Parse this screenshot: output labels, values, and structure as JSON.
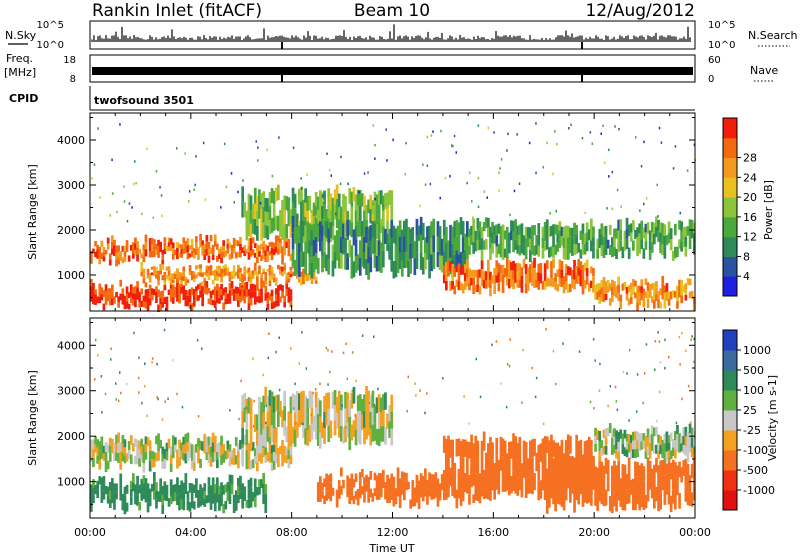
{
  "header": {
    "station": "Rankin Inlet (fitACF)",
    "beam": "Beam 10",
    "date": "12/Aug/2012"
  },
  "panels": {
    "nsky_label": "N.Sky",
    "nsky_ticks": [
      "10^5",
      "10^0"
    ],
    "nsearch_label": "N.Search",
    "nsearch_ticks": [
      "10^5",
      "10^0"
    ],
    "freq_label_1": "Freq.",
    "freq_label_2": "[MHz]",
    "freq_ticks": [
      "18",
      "8"
    ],
    "nave_label": "Nave",
    "nave_ticks": [
      "60",
      "0"
    ],
    "cpid_label": "CPID",
    "cpid_value": "twofsound 3501"
  },
  "chart_data": [
    {
      "type": "heatmap",
      "name": "power",
      "ylabel": "Slant Range [km]",
      "yticks": [
        1000,
        2000,
        3000,
        4000
      ],
      "ylim": [
        200,
        4600
      ],
      "xlim_hours": [
        0,
        24
      ],
      "colorbar_label": "Power [dB]",
      "colorbar_ticks": [
        4,
        8,
        12,
        16,
        20,
        24,
        28
      ],
      "colorbar_colors": [
        "#1f1fe0",
        "#2a52a0",
        "#2f8a5a",
        "#4aa83c",
        "#8cc43c",
        "#e8c020",
        "#f59a20",
        "#f56a10",
        "#f01e0a"
      ],
      "range_bands_km": [
        {
          "hours": [
            0,
            8
          ],
          "range": [
            250,
            800
          ],
          "value": 30
        },
        {
          "hours": [
            0,
            8
          ],
          "range": [
            1300,
            1800
          ],
          "value": 26
        },
        {
          "hours": [
            2,
            9
          ],
          "range": [
            800,
            1200
          ],
          "value": 24
        },
        {
          "hours": [
            6,
            12
          ],
          "range": [
            1800,
            2900
          ],
          "value": 14
        },
        {
          "hours": [
            8,
            15
          ],
          "range": [
            1000,
            2200
          ],
          "value": 10
        },
        {
          "hours": [
            14,
            20
          ],
          "range": [
            600,
            1300
          ],
          "value": 26
        },
        {
          "hours": [
            15,
            24
          ],
          "range": [
            1400,
            2200
          ],
          "value": 12
        },
        {
          "hours": [
            20,
            24
          ],
          "range": [
            300,
            900
          ],
          "value": 24
        }
      ]
    },
    {
      "type": "heatmap",
      "name": "velocity",
      "ylabel": "Slant Range [km]",
      "yticks": [
        1000,
        2000,
        3000,
        4000
      ],
      "ylim": [
        200,
        4600
      ],
      "xlim_hours": [
        0,
        24
      ],
      "xticks": [
        "00:00",
        "04:00",
        "08:00",
        "12:00",
        "16:00",
        "20:00",
        "00:00"
      ],
      "xlabel": "Time UT",
      "colorbar_label": "Velocity [m s-1]",
      "colorbar_ticks": [
        1000,
        500,
        100,
        25,
        -25,
        -100,
        -500,
        -1000
      ],
      "colorbar_colors": [
        "#2040c0",
        "#3a6aa0",
        "#2f8a5a",
        "#60b040",
        "#c8c8c8",
        "#f5a020",
        "#f57020",
        "#f03010",
        "#e01010"
      ],
      "range_bands_km": [
        {
          "hours": [
            0,
            7
          ],
          "range": [
            400,
            1100
          ],
          "value": 150
        },
        {
          "hours": [
            0,
            8
          ],
          "range": [
            1300,
            2000
          ],
          "value": 0
        },
        {
          "hours": [
            6,
            12
          ],
          "range": [
            1800,
            3000
          ],
          "value": 0
        },
        {
          "hours": [
            9,
            16
          ],
          "range": [
            500,
            1200
          ],
          "value": -200
        },
        {
          "hours": [
            14,
            20
          ],
          "range": [
            700,
            2000
          ],
          "value": -300
        },
        {
          "hours": [
            18,
            24
          ],
          "range": [
            400,
            1500
          ],
          "value": -250
        },
        {
          "hours": [
            20,
            24
          ],
          "range": [
            1500,
            2200
          ],
          "value": 20
        }
      ]
    }
  ]
}
